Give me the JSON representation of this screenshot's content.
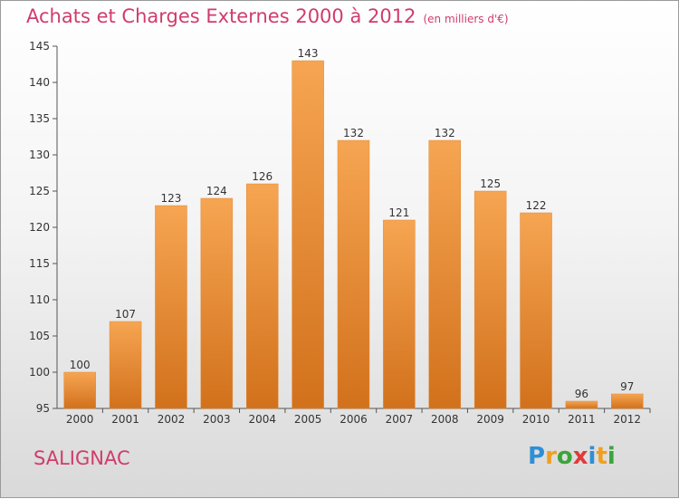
{
  "header": {
    "title": "Achats et Charges Externes 2000 à 2012",
    "unit": "(en milliers d'€)"
  },
  "footer": {
    "commune": "SALIGNAC",
    "logo_text": "Proxiti"
  },
  "colors": {
    "accent": "#d03c6b",
    "bar_light": "#f6a552",
    "bar_dark": "#d2711c"
  },
  "chart_data": {
    "type": "bar",
    "categories": [
      "2000",
      "2001",
      "2002",
      "2003",
      "2004",
      "2005",
      "2006",
      "2007",
      "2008",
      "2009",
      "2010",
      "2011",
      "2012"
    ],
    "values": [
      100,
      107,
      123,
      124,
      126,
      143,
      132,
      121,
      132,
      125,
      122,
      96,
      97
    ],
    "title": "Achats et Charges Externes 2000 à 2012",
    "ylabel": "",
    "xlabel": "",
    "ylim": [
      95,
      145
    ],
    "yticks": [
      95,
      100,
      105,
      110,
      115,
      120,
      125,
      130,
      135,
      140,
      145
    ],
    "grid": false,
    "data_labels": true
  }
}
